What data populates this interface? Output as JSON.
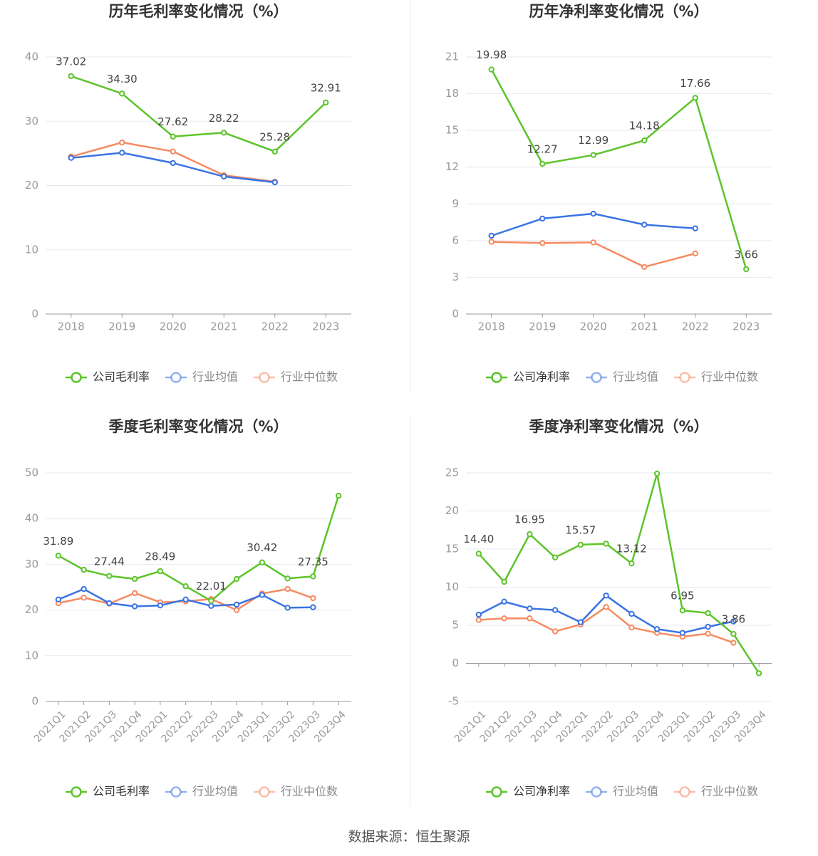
{
  "source_text": "数据来源：恒生聚源",
  "colors": {
    "company": "#5cc42a",
    "avg": "#3a73e3",
    "median": "#f68a60",
    "grid": "#e6e8ef",
    "axis": "#999999",
    "label": "#444444"
  },
  "chart_data": [
    {
      "type": "line",
      "title": "历年毛利率变化情况（%）",
      "categories": [
        "2018",
        "2019",
        "2020",
        "2021",
        "2022",
        "2023"
      ],
      "ylim": [
        0,
        40
      ],
      "yticks": [
        "0",
        "10",
        "20",
        "30",
        "40"
      ],
      "ytick_values": [
        0,
        10,
        20,
        30,
        40
      ],
      "rotate_x_labels": false,
      "grid": true,
      "legend": "bottom",
      "series": [
        {
          "name": "公司毛利率",
          "values": [
            37.02,
            34.3,
            27.62,
            28.22,
            25.28,
            32.91
          ],
          "labels": [
            "37.02",
            "34.30",
            "27.62",
            "28.22",
            "25.28",
            "32.91"
          ]
        },
        {
          "name": "行业均值",
          "values": [
            24.3,
            25.1,
            23.5,
            21.4,
            20.5,
            null
          ]
        },
        {
          "name": "行业中位数",
          "values": [
            24.5,
            26.7,
            25.3,
            21.6,
            20.6,
            null
          ]
        }
      ]
    },
    {
      "type": "line",
      "title": "历年净利率变化情况（%）",
      "categories": [
        "2018",
        "2019",
        "2020",
        "2021",
        "2022",
        "2023"
      ],
      "ylim": [
        0,
        21
      ],
      "yticks": [
        "0",
        "3",
        "6",
        "9",
        "12",
        "15",
        "18",
        "21"
      ],
      "ytick_values": [
        0,
        3,
        6,
        9,
        12,
        15,
        18,
        21
      ],
      "rotate_x_labels": false,
      "grid": true,
      "legend": "bottom",
      "series": [
        {
          "name": "公司净利率",
          "values": [
            19.98,
            12.27,
            12.99,
            14.18,
            17.66,
            3.66
          ],
          "labels": [
            "19.98",
            "12.27",
            "12.99",
            "14.18",
            "17.66",
            "3.66"
          ]
        },
        {
          "name": "行业均值",
          "values": [
            6.4,
            7.8,
            8.2,
            7.3,
            7.0,
            null
          ]
        },
        {
          "name": "行业中位数",
          "values": [
            5.9,
            5.8,
            5.85,
            3.85,
            4.95,
            null
          ]
        }
      ]
    },
    {
      "type": "line",
      "title": "季度毛利率变化情况（%）",
      "categories": [
        "2021Q1",
        "2021Q2",
        "2021Q3",
        "2021Q4",
        "2022Q1",
        "2022Q2",
        "2022Q3",
        "2022Q4",
        "2023Q1",
        "2023Q2",
        "2023Q3",
        "2023Q4"
      ],
      "ylim": [
        0,
        50
      ],
      "yticks": [
        "0",
        "10",
        "20",
        "30",
        "40",
        "50"
      ],
      "ytick_values": [
        0,
        10,
        20,
        30,
        40,
        50
      ],
      "rotate_x_labels": true,
      "grid": true,
      "legend": "bottom",
      "series": [
        {
          "name": "公司毛利率",
          "values": [
            31.89,
            28.8,
            27.44,
            26.8,
            28.49,
            25.2,
            22.01,
            26.8,
            30.42,
            26.9,
            27.35,
            45.0
          ],
          "labels": [
            "31.89",
            "",
            "27.44",
            "",
            "28.49",
            "",
            "22.01",
            "",
            "30.42",
            "",
            "27.35",
            ""
          ]
        },
        {
          "name": "行业均值",
          "values": [
            22.3,
            24.6,
            21.5,
            20.8,
            21.0,
            22.3,
            20.9,
            21.2,
            23.3,
            20.5,
            20.6,
            null
          ]
        },
        {
          "name": "行业中位数",
          "values": [
            21.5,
            22.7,
            21.4,
            23.7,
            21.7,
            21.9,
            22.4,
            20.0,
            23.6,
            24.6,
            22.6,
            null
          ]
        }
      ]
    },
    {
      "type": "line",
      "title": "季度净利率变化情况（%）",
      "categories": [
        "2021Q1",
        "2021Q2",
        "2021Q3",
        "2021Q4",
        "2022Q1",
        "2022Q2",
        "2022Q3",
        "2022Q4",
        "2023Q1",
        "2023Q2",
        "2023Q3",
        "2023Q4"
      ],
      "ylim": [
        -5,
        25
      ],
      "yticks": [
        "-5",
        "0",
        "5",
        "10",
        "15",
        "20",
        "25"
      ],
      "ytick_values": [
        -5,
        0,
        5,
        10,
        15,
        20,
        25
      ],
      "rotate_x_labels": true,
      "grid": true,
      "legend": "bottom",
      "series": [
        {
          "name": "公司净利率",
          "values": [
            14.4,
            10.7,
            16.95,
            13.9,
            15.57,
            15.7,
            13.12,
            24.9,
            6.95,
            6.6,
            3.86,
            -1.3
          ],
          "labels": [
            "14.40",
            "",
            "16.95",
            "",
            "15.57",
            "",
            "13.12",
            "",
            "6.95",
            "",
            "3.86",
            ""
          ]
        },
        {
          "name": "行业均值",
          "values": [
            6.4,
            8.1,
            7.2,
            7.0,
            5.4,
            8.9,
            6.5,
            4.5,
            4.0,
            4.8,
            5.5,
            null
          ]
        },
        {
          "name": "行业中位数",
          "values": [
            5.7,
            5.9,
            5.9,
            4.2,
            5.1,
            7.4,
            4.7,
            4.0,
            3.5,
            3.9,
            2.7,
            null
          ]
        }
      ]
    }
  ]
}
